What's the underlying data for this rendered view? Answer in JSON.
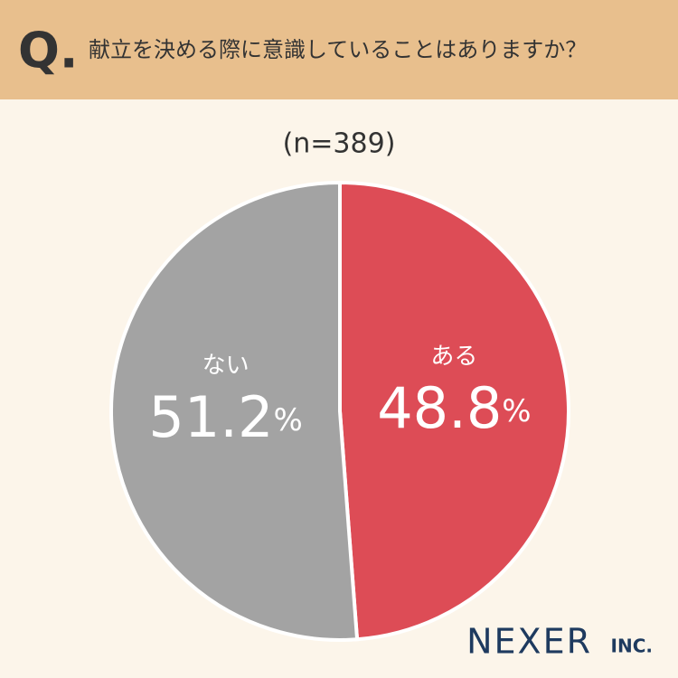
{
  "chart_data": {
    "type": "pie",
    "question_mark": "Q.",
    "title": "献立を決める際に意識していることはありますか？",
    "subtitle": "(n=389)",
    "categories": [
      "ある",
      "ない"
    ],
    "values": [
      48.8,
      51.2
    ],
    "value_labels": [
      "48.8%",
      "51.2%"
    ],
    "colors": [
      "#dd4c56",
      "#a3a3a3"
    ],
    "logo": {
      "name": "NEXER",
      "suffix": "INC."
    }
  }
}
